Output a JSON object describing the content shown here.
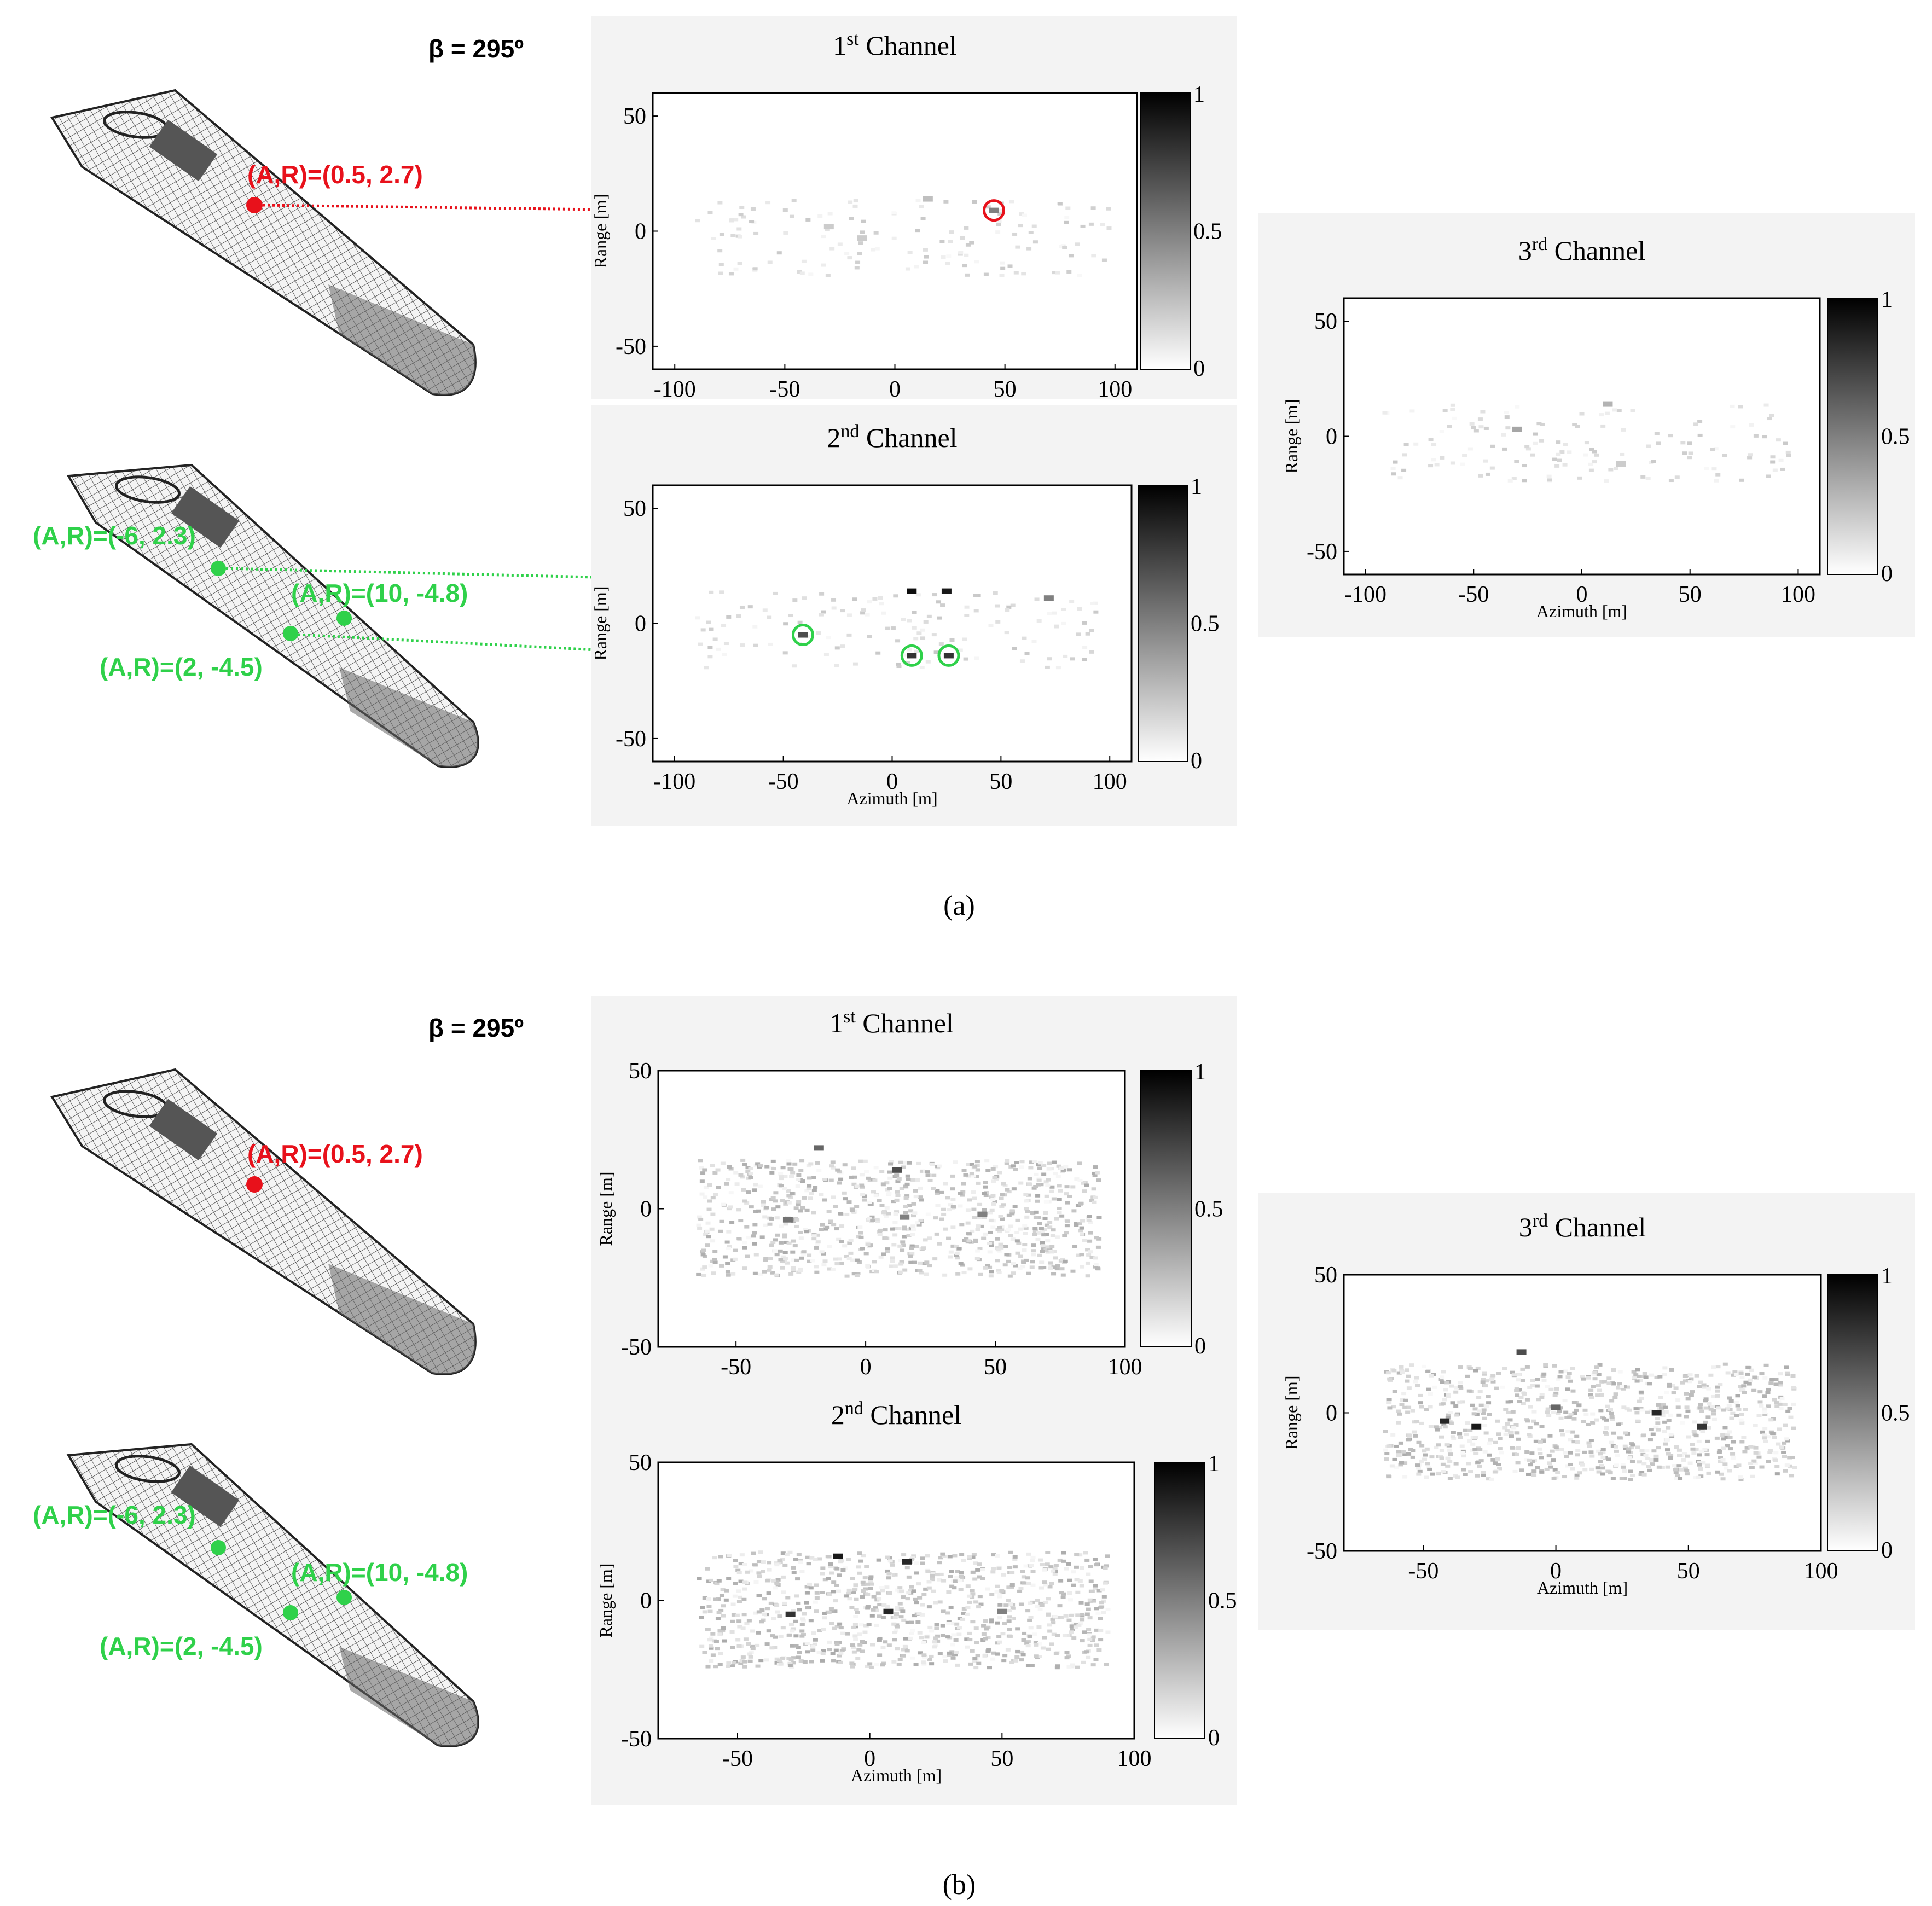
{
  "colors": {
    "red": "#e8111b",
    "green": "#2fd14a",
    "axis": "#000000",
    "panel_bg": "#f3f3f3"
  },
  "figure_a": {
    "beta_label": "β = 295º",
    "caption": "(a)",
    "red_annotation": "(A,R)=(0.5, 2.7)",
    "green_annotations": [
      "(A,R)=(-6, 2.3)",
      "(A,R)=(10, -4.8)",
      "(A,R)=(2, -4.5)"
    ],
    "ship_icon_top": "ship-wireframe-icon",
    "ship_icon_bottom": "ship-wireframe-icon"
  },
  "figure_b": {
    "beta_label": "β = 295º",
    "caption": "(b)",
    "red_annotation": "(A,R)=(0.5, 2.7)",
    "green_annotations": [
      "(A,R)=(-6, 2.3)",
      "(A,R)=(10, -4.8)",
      "(A,R)=(2, -4.5)"
    ],
    "ship_icon_top": "ship-wireframe-icon",
    "ship_icon_bottom": "ship-wireframe-icon"
  },
  "chart_data": [
    {
      "id": "a1",
      "type": "heatmap",
      "title_num": "1",
      "title_sup": "st",
      "title_rest": " Channel",
      "xlabel": "",
      "ylabel": "Range [m]",
      "xlim": [
        -110,
        110
      ],
      "ylim": [
        -60,
        60
      ],
      "xticks": [
        -100,
        -50,
        0,
        50,
        100
      ],
      "yticks": [
        50,
        0,
        -50
      ],
      "colorbar_ticks": [
        "1",
        "0.5",
        "0"
      ],
      "highlight_points": [
        {
          "azimuth": 45,
          "range": 9,
          "color": "red"
        }
      ],
      "scatterers": [
        {
          "azimuth": 45,
          "range": 9,
          "intensity": 0.5
        },
        {
          "azimuth": 15,
          "range": 14,
          "intensity": 0.25
        },
        {
          "azimuth": -30,
          "range": 2,
          "intensity": 0.2
        },
        {
          "azimuth": -15,
          "range": -3,
          "intensity": 0.2
        }
      ]
    },
    {
      "id": "a2",
      "type": "heatmap",
      "title_num": "2",
      "title_sup": "nd",
      "title_rest": " Channel",
      "xlabel": "Azimuth [m]",
      "ylabel": "Range [m]",
      "xlim": [
        -110,
        110
      ],
      "ylim": [
        -60,
        60
      ],
      "xticks": [
        -100,
        -50,
        0,
        50,
        100
      ],
      "yticks": [
        50,
        0,
        -50
      ],
      "colorbar_ticks": [
        "1",
        "0.5",
        "0"
      ],
      "highlight_points": [
        {
          "azimuth": -41,
          "range": -5,
          "color": "green"
        },
        {
          "azimuth": 9,
          "range": -14,
          "color": "green"
        },
        {
          "azimuth": 26,
          "range": -14,
          "color": "green"
        }
      ],
      "scatterers": [
        {
          "azimuth": 9,
          "range": 14,
          "intensity": 0.95
        },
        {
          "azimuth": 25,
          "range": 14,
          "intensity": 0.9
        },
        {
          "azimuth": -41,
          "range": -5,
          "intensity": 0.7
        },
        {
          "azimuth": 9,
          "range": -14,
          "intensity": 0.8
        },
        {
          "azimuth": 26,
          "range": -14,
          "intensity": 0.8
        },
        {
          "azimuth": 72,
          "range": 11,
          "intensity": 0.5
        }
      ]
    },
    {
      "id": "a3",
      "type": "heatmap",
      "title_num": "3",
      "title_sup": "rd",
      "title_rest": " Channel",
      "xlabel": "Azimuth [m]",
      "ylabel": "Range [m]",
      "xlim": [
        -110,
        110
      ],
      "ylim": [
        -60,
        60
      ],
      "xticks": [
        -100,
        -50,
        0,
        50,
        100
      ],
      "yticks": [
        50,
        0,
        -50
      ],
      "colorbar_ticks": [
        "1",
        "0.5",
        "0"
      ],
      "scatterers": [
        {
          "azimuth": 12,
          "range": 14,
          "intensity": 0.3
        },
        {
          "azimuth": -30,
          "range": 3,
          "intensity": 0.35
        },
        {
          "azimuth": 18,
          "range": -12,
          "intensity": 0.2
        }
      ]
    },
    {
      "id": "b1",
      "type": "heatmap",
      "title_num": "1",
      "title_sup": "st",
      "title_rest": " Channel",
      "xlabel": "",
      "ylabel": "Range [m]",
      "xlim": [
        -80,
        100
      ],
      "ylim": [
        -50,
        50
      ],
      "xticks": [
        -50,
        0,
        50,
        100
      ],
      "yticks": [
        50,
        0,
        -50
      ],
      "colorbar_ticks": [
        "1",
        "0.5",
        "0"
      ],
      "scatterers": [
        {
          "azimuth": -18,
          "range": 22,
          "intensity": 0.6
        },
        {
          "azimuth": 12,
          "range": 14,
          "intensity": 0.7
        },
        {
          "azimuth": -30,
          "range": -4,
          "intensity": 0.55
        },
        {
          "azimuth": 15,
          "range": -3,
          "intensity": 0.5
        },
        {
          "azimuth": 45,
          "range": -2,
          "intensity": 0.5
        }
      ]
    },
    {
      "id": "b2",
      "type": "heatmap",
      "title_num": "2",
      "title_sup": "nd",
      "title_rest": " Channel",
      "xlabel": "Azimuth [m]",
      "ylabel": "Range [m]",
      "xlim": [
        -80,
        100
      ],
      "ylim": [
        -50,
        50
      ],
      "xticks": [
        -50,
        0,
        50,
        100
      ],
      "yticks": [
        50,
        0,
        -50
      ],
      "colorbar_ticks": [
        "1",
        "0.5",
        "0"
      ],
      "scatterers": [
        {
          "azimuth": -12,
          "range": 16,
          "intensity": 0.9
        },
        {
          "azimuth": 14,
          "range": 14,
          "intensity": 0.85
        },
        {
          "azimuth": -30,
          "range": -5,
          "intensity": 0.8
        },
        {
          "azimuth": 7,
          "range": -4,
          "intensity": 0.85
        },
        {
          "azimuth": 50,
          "range": -4,
          "intensity": 0.5
        }
      ]
    },
    {
      "id": "b3",
      "type": "heatmap",
      "title_num": "3",
      "title_sup": "rd",
      "title_rest": " Channel",
      "xlabel": "Azimuth [m]",
      "ylabel": "Range [m]",
      "xlim": [
        -80,
        100
      ],
      "ylim": [
        -50,
        50
      ],
      "xticks": [
        -50,
        0,
        50,
        100
      ],
      "yticks": [
        50,
        0,
        -50
      ],
      "colorbar_ticks": [
        "1",
        "0.5",
        "0"
      ],
      "scatterers": [
        {
          "azimuth": -13,
          "range": 22,
          "intensity": 0.7
        },
        {
          "azimuth": -42,
          "range": -3,
          "intensity": 0.85
        },
        {
          "azimuth": -30,
          "range": -5,
          "intensity": 0.9
        },
        {
          "azimuth": 38,
          "range": 0,
          "intensity": 0.85
        },
        {
          "azimuth": 55,
          "range": -5,
          "intensity": 0.8
        },
        {
          "azimuth": 0,
          "range": 2,
          "intensity": 0.6
        }
      ]
    }
  ]
}
